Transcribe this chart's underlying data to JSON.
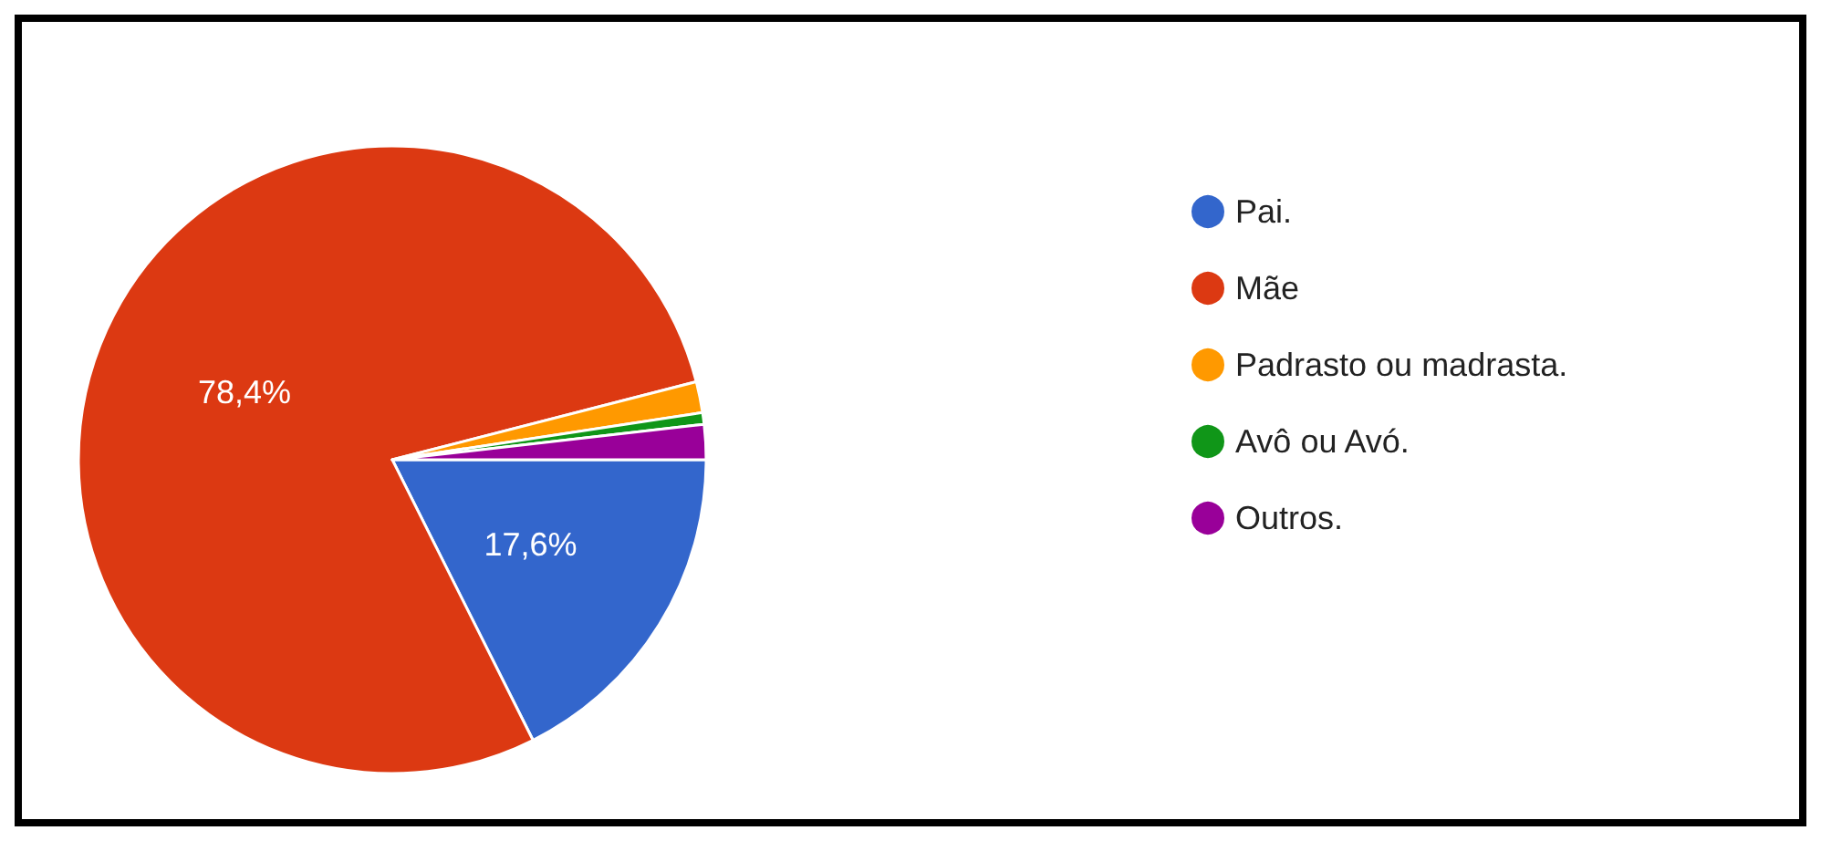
{
  "chart_data": {
    "type": "pie",
    "categories": [
      "Pai.",
      "Mãe",
      "Padrasto ou madrasta.",
      "Avô ou Avó.",
      "Outros."
    ],
    "values": [
      17.6,
      78.4,
      1.6,
      0.6,
      1.8
    ],
    "colors": [
      "#3366cc",
      "#dc3912",
      "#ff9900",
      "#109618",
      "#990099"
    ],
    "value_labels": [
      "17,6%",
      "78,4%",
      null,
      null,
      null
    ],
    "legend": "top right"
  }
}
